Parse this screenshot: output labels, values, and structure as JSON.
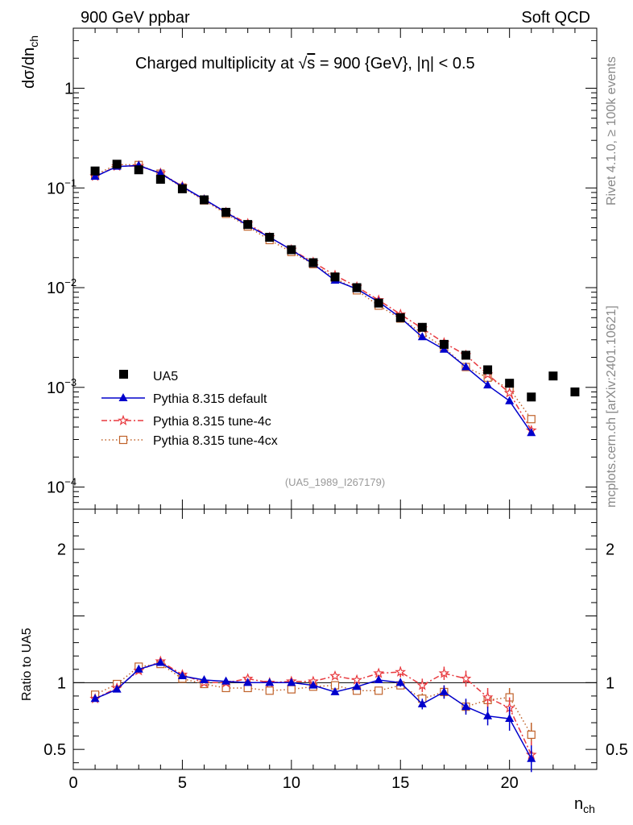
{
  "header": {
    "left": "900 GeV ppbar",
    "right": "Soft QCD"
  },
  "side_labels": {
    "rivet": "Rivet 4.1.0, ≥ 100k events",
    "mcplots": "mcplots.cern.ch [arXiv:2401.10621]"
  },
  "colors": {
    "data": "#000000",
    "default": "#0000cc",
    "tune4c": "#e8393e",
    "tune4cx": "#c0622a",
    "ref": "#999999"
  },
  "chart_data": [
    {
      "type": "scatter",
      "title": "Charged multiplicity at √s = 900 {GeV}, |η| < 0.5",
      "title_parts": {
        "pre": "Charged multiplicity at ",
        "sqrt": "√",
        "s": "s",
        "post": " = 900 {GeV}, |η| < 0.5"
      },
      "ylabel": "dσ/dn",
      "ylabel_sub": "ch",
      "yscale": "log",
      "ylim": [
        6e-05,
        4
      ],
      "xlim": [
        0,
        24
      ],
      "y_ticks": [
        {
          "v": 1,
          "base": "1",
          "exp": ""
        },
        {
          "v": 0.1,
          "base": "10",
          "exp": "−1"
        },
        {
          "v": 0.01,
          "base": "10",
          "exp": "−2"
        },
        {
          "v": 0.001,
          "base": "10",
          "exp": "−3"
        },
        {
          "v": 0.0001,
          "base": "10",
          "exp": "−4"
        }
      ],
      "ref_label": "(UA5_1989_I267179)",
      "legend_position": "lower-left",
      "series": [
        {
          "key": "data",
          "name": "UA5",
          "x": [
            1,
            2,
            3,
            4,
            5,
            6,
            7,
            8,
            9,
            10,
            11,
            12,
            13,
            14,
            15,
            16,
            17,
            18,
            19,
            20,
            21,
            22,
            23
          ],
          "y": [
            0.148,
            0.173,
            0.152,
            0.122,
            0.098,
            0.076,
            0.057,
            0.043,
            0.032,
            0.024,
            0.0178,
            0.0128,
            0.01,
            0.007,
            0.005,
            0.004,
            0.0027,
            0.0021,
            0.0015,
            0.0011,
            0.0008,
            0.0013,
            0.0009
          ]
        },
        {
          "key": "default",
          "name": "Pythia 8.315 default",
          "x": [
            1,
            2,
            3,
            4,
            5,
            6,
            7,
            8,
            9,
            10,
            11,
            12,
            13,
            14,
            15,
            16,
            17,
            18,
            19,
            20,
            21
          ],
          "y": [
            0.13,
            0.164,
            0.168,
            0.14,
            0.103,
            0.077,
            0.057,
            0.042,
            0.032,
            0.024,
            0.0173,
            0.0118,
            0.0097,
            0.0072,
            0.005,
            0.0032,
            0.0024,
            0.0016,
            0.00105,
            0.00073,
            0.00035
          ]
        },
        {
          "key": "tune4c",
          "name": "Pythia 8.315 tune-4c",
          "x": [
            1,
            2,
            3,
            4,
            5,
            6,
            7,
            8,
            9,
            10,
            11,
            12,
            13,
            14,
            15,
            16,
            17,
            18,
            19,
            20,
            21
          ],
          "y": [
            0.131,
            0.165,
            0.166,
            0.141,
            0.104,
            0.076,
            0.057,
            0.044,
            0.032,
            0.024,
            0.018,
            0.0133,
            0.0102,
            0.0075,
            0.0054,
            0.0039,
            0.0028,
            0.0021,
            0.00135,
            0.00088,
            0.00037
          ]
        },
        {
          "key": "tune4cx",
          "name": "Pythia 8.315 tune-4cx",
          "x": [
            1,
            2,
            3,
            4,
            5,
            6,
            7,
            8,
            9,
            10,
            11,
            12,
            13,
            14,
            15,
            16,
            17,
            18,
            19,
            20,
            21
          ],
          "y": [
            0.135,
            0.172,
            0.17,
            0.139,
            0.101,
            0.075,
            0.055,
            0.041,
            0.03,
            0.0228,
            0.0172,
            0.0125,
            0.0094,
            0.0066,
            0.0049,
            0.0035,
            0.0025,
            0.0016,
            0.00125,
            0.00097,
            0.00048
          ]
        }
      ]
    },
    {
      "type": "scatter",
      "title": "",
      "ylabel": "Ratio to UA5",
      "xlabel": "n",
      "xlabel_sub": "ch",
      "xlim": [
        0,
        24
      ],
      "ylim": [
        0.35,
        2.3
      ],
      "x_ticks": [
        0,
        5,
        10,
        15,
        20
      ],
      "y_ticks": [
        0.5,
        1,
        2
      ],
      "series": [
        {
          "key": "default",
          "name": "Pythia 8.315 default",
          "x": [
            1,
            2,
            3,
            4,
            5,
            6,
            7,
            8,
            9,
            10,
            11,
            12,
            13,
            14,
            15,
            16,
            17,
            18,
            19,
            20,
            21
          ],
          "y": [
            0.88,
            0.95,
            1.1,
            1.15,
            1.05,
            1.02,
            1.01,
            1.0,
            1.0,
            1.0,
            0.98,
            0.93,
            0.97,
            1.02,
            1.0,
            0.84,
            0.93,
            0.82,
            0.75,
            0.73,
            0.43
          ],
          "err": [
            0.01,
            0.01,
            0.01,
            0.01,
            0.01,
            0.01,
            0.01,
            0.01,
            0.01,
            0.01,
            0.01,
            0.01,
            0.02,
            0.02,
            0.03,
            0.04,
            0.05,
            0.06,
            0.07,
            0.09,
            0.1
          ]
        },
        {
          "key": "tune4c",
          "name": "Pythia 8.315 tune-4c",
          "x": [
            1,
            2,
            3,
            4,
            5,
            6,
            7,
            8,
            9,
            10,
            11,
            12,
            13,
            14,
            15,
            16,
            17,
            18,
            19,
            20,
            21
          ],
          "y": [
            0.88,
            0.96,
            1.09,
            1.16,
            1.06,
            1.0,
            1.0,
            1.03,
            1.0,
            1.01,
            1.01,
            1.05,
            1.02,
            1.07,
            1.08,
            0.98,
            1.07,
            1.03,
            0.89,
            0.81,
            0.46
          ],
          "err": [
            0.01,
            0.01,
            0.01,
            0.01,
            0.01,
            0.01,
            0.01,
            0.01,
            0.01,
            0.01,
            0.02,
            0.02,
            0.03,
            0.03,
            0.04,
            0.05,
            0.05,
            0.06,
            0.07,
            0.08,
            0.1
          ]
        },
        {
          "key": "tune4cx",
          "name": "Pythia 8.315 tune-4cx",
          "x": [
            1,
            2,
            3,
            4,
            5,
            6,
            7,
            8,
            9,
            10,
            11,
            12,
            13,
            14,
            15,
            16,
            17,
            18,
            19,
            20,
            21
          ],
          "y": [
            0.91,
            0.99,
            1.12,
            1.14,
            1.03,
            0.99,
            0.96,
            0.96,
            0.94,
            0.95,
            0.97,
            0.98,
            0.94,
            0.94,
            0.98,
            0.88,
            0.93,
            0.82,
            0.87,
            0.89,
            0.61
          ],
          "err": [
            0.01,
            0.01,
            0.01,
            0.01,
            0.01,
            0.01,
            0.01,
            0.01,
            0.01,
            0.01,
            0.02,
            0.02,
            0.02,
            0.03,
            0.03,
            0.04,
            0.05,
            0.05,
            0.06,
            0.07,
            0.09
          ]
        }
      ]
    }
  ]
}
